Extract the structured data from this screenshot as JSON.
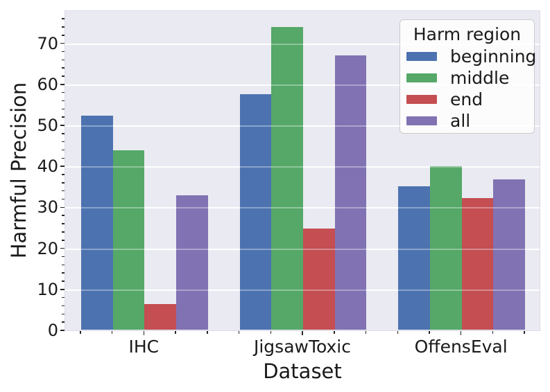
{
  "chart_data": {
    "type": "bar",
    "title": "",
    "xlabel": "Dataset",
    "ylabel": "Harmful Precision",
    "categories": [
      "IHC",
      "JigsawToxic",
      "OffensEval"
    ],
    "series": [
      {
        "name": "beginning",
        "color": "#4C72B0",
        "values": [
          52.2,
          57.4,
          35.0
        ]
      },
      {
        "name": "middle",
        "color": "#55A868",
        "values": [
          43.7,
          73.9,
          39.8
        ]
      },
      {
        "name": "end",
        "color": "#C44E52",
        "values": [
          6.3,
          24.7,
          32.1
        ]
      },
      {
        "name": "all",
        "color": "#8172B3",
        "values": [
          32.8,
          66.9,
          36.6
        ]
      }
    ],
    "ylim": [
      0,
      78
    ],
    "yticks": [
      0,
      10,
      20,
      30,
      40,
      50,
      60,
      70
    ],
    "grid": true,
    "grid_on_top": true,
    "legend": {
      "title": "Harm region",
      "position": "upper right"
    }
  },
  "colors": {
    "figure_bg": "#ffffff",
    "plot_bg": "#EAEAF2",
    "gridline": "#ffffff",
    "tick": "#262626",
    "legend_border": "#cccccc"
  }
}
